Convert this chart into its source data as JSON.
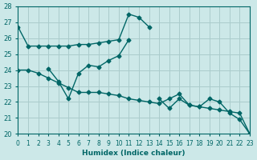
{
  "xlabel": "Humidex (Indice chaleur)",
  "ylabel": "",
  "background_color": "#cce8e8",
  "grid_color": "#aacccc",
  "line_color": "#006666",
  "xlim": [
    0,
    23
  ],
  "ylim": [
    20,
    28
  ],
  "xticks": [
    0,
    1,
    2,
    3,
    4,
    5,
    6,
    7,
    8,
    9,
    10,
    11,
    12,
    13,
    14,
    15,
    16,
    17,
    18,
    19,
    20,
    21,
    22,
    23
  ],
  "yticks": [
    20,
    21,
    22,
    23,
    24,
    25,
    26,
    27,
    28
  ],
  "series": [
    {
      "x": [
        0,
        1,
        2,
        3,
        4,
        5,
        6,
        7,
        8,
        9,
        10,
        11,
        12,
        13
      ],
      "y": [
        26.7,
        25.5,
        25.5,
        25.5,
        25.5,
        25.5,
        25.6,
        25.6,
        25.7,
        25.8,
        25.9,
        27.5,
        27.3,
        26.7
      ]
    },
    {
      "x": [
        3,
        4,
        5,
        6,
        7,
        8,
        9,
        10,
        11
      ],
      "y": [
        24.1,
        23.3,
        22.2,
        23.8,
        24.3,
        24.2,
        24.6,
        24.9,
        25.9
      ]
    },
    {
      "x": [
        0,
        1,
        2,
        3,
        4,
        5,
        6,
        7,
        8,
        9,
        10,
        11,
        12,
        13,
        14,
        15,
        16,
        17,
        18,
        19,
        20,
        21,
        22,
        23
      ],
      "y": [
        24.0,
        24.0,
        23.8,
        23.5,
        23.2,
        22.9,
        22.6,
        22.6,
        22.6,
        22.5,
        22.4,
        22.2,
        22.1,
        22.0,
        21.9,
        22.2,
        22.5,
        21.8,
        21.7,
        21.6,
        21.5,
        21.4,
        21.3,
        20.0
      ]
    },
    {
      "x": [
        14,
        15,
        16,
        17,
        18,
        19,
        20,
        21,
        22,
        23
      ],
      "y": [
        22.2,
        21.6,
        22.2,
        21.8,
        21.7,
        22.2,
        22.0,
        21.3,
        20.9,
        20.0
      ]
    }
  ]
}
